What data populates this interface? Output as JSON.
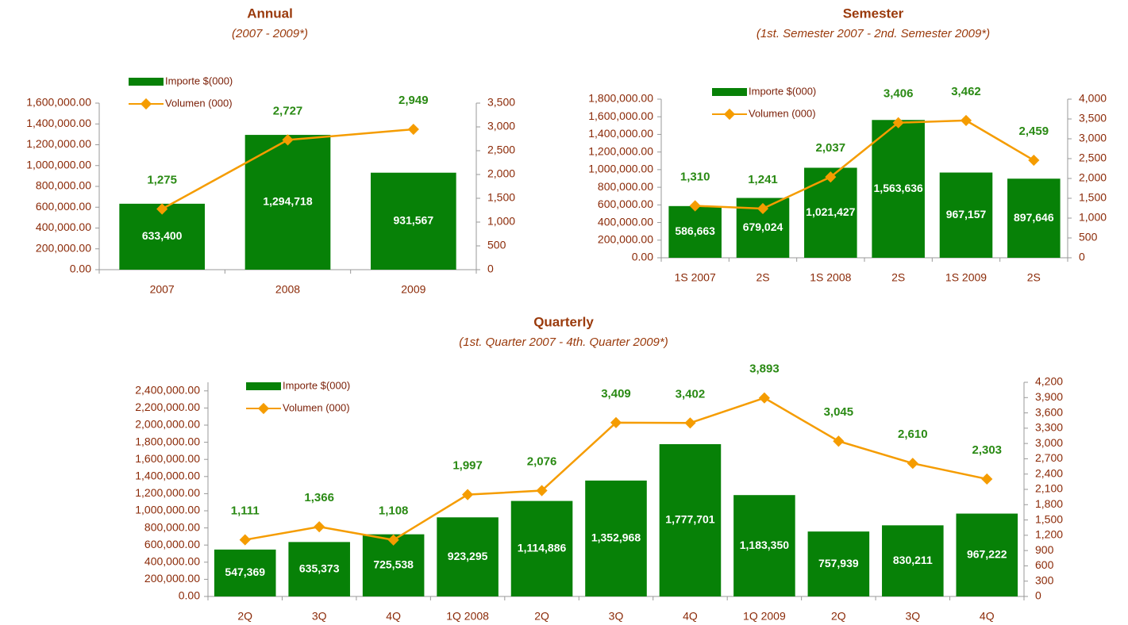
{
  "chart_data": [
    {
      "type": "bar-line",
      "title": "Annual",
      "subtitle": "(2007 - 2009*)",
      "categories": [
        "2007",
        "2008",
        "2009"
      ],
      "series": [
        {
          "name": "Importe $(000)",
          "type": "bar",
          "axis": "y",
          "color": "#078107",
          "values": [
            633400,
            1294718,
            931567
          ],
          "value_labels": [
            "633,400",
            "1,294,718",
            "931,567"
          ]
        },
        {
          "name": "Volumen (000)",
          "type": "line",
          "axis": "y2",
          "color": "#f59c00",
          "values": [
            1275,
            2727,
            2949
          ],
          "value_labels": [
            "1,275",
            "2,727",
            "2,949"
          ]
        }
      ],
      "ylim": [
        0,
        1600000
      ],
      "yticks": [
        {
          "value": 0,
          "label": "0.00"
        },
        {
          "value": 200000,
          "label": "200,000.00"
        },
        {
          "value": 400000,
          "label": "400,000.00"
        },
        {
          "value": 600000,
          "label": "600,000.00"
        },
        {
          "value": 800000,
          "label": "800,000.00"
        },
        {
          "value": 1000000,
          "label": "1,000,000.00"
        },
        {
          "value": 1200000,
          "label": "1,200,000.00"
        },
        {
          "value": 1400000,
          "label": "1,400,000.00"
        },
        {
          "value": 1600000,
          "label": "1,600,000.00"
        }
      ],
      "y2lim": [
        0,
        3500
      ],
      "y2ticks": [
        0,
        500,
        {
          "value": 1000,
          "label": "1,000"
        },
        {
          "value": 1500,
          "label": "1,500"
        },
        {
          "value": 2000,
          "label": "2,000"
        },
        {
          "value": 2500,
          "label": "2,500"
        },
        {
          "value": 3000,
          "label": "3,000"
        },
        {
          "value": 3500,
          "label": "3,500"
        }
      ],
      "legend": "upper left",
      "grid": false
    },
    {
      "type": "bar-line",
      "title": "Semester",
      "subtitle": "(1st. Semester 2007 - 2nd. Semester 2009*)",
      "categories": [
        "1S 2007",
        "2S",
        "1S 2008",
        "2S",
        "1S 2009",
        "2S"
      ],
      "series": [
        {
          "name": "Importe $(000)",
          "type": "bar",
          "axis": "y",
          "color": "#078107",
          "values": [
            586663,
            679024,
            1021427,
            1563636,
            967157,
            897646
          ],
          "value_labels": [
            "586,663",
            "679,024",
            "1,021,427",
            "1,563,636",
            "967,157",
            "897,646"
          ]
        },
        {
          "name": "Volumen (000)",
          "type": "line",
          "axis": "y2",
          "color": "#f59c00",
          "values": [
            1310,
            1241,
            2037,
            3406,
            3462,
            2459
          ],
          "value_labels": [
            "1,310",
            "1,241",
            "2,037",
            "3,406",
            "3,462",
            "2,459"
          ]
        }
      ],
      "ylim": [
        0,
        1800000
      ],
      "yticks": [
        {
          "value": 0,
          "label": "0.00"
        },
        {
          "value": 200000,
          "label": "200,000.00"
        },
        {
          "value": 400000,
          "label": "400,000.00"
        },
        {
          "value": 600000,
          "label": "600,000.00"
        },
        {
          "value": 800000,
          "label": "800,000.00"
        },
        {
          "value": 1000000,
          "label": "1,000,000.00"
        },
        {
          "value": 1200000,
          "label": "1,200,000.00"
        },
        {
          "value": 1400000,
          "label": "1,400,000.00"
        },
        {
          "value": 1600000,
          "label": "1,600,000.00"
        },
        {
          "value": 1800000,
          "label": "1,800,000.00"
        }
      ],
      "y2lim": [
        0,
        4000
      ],
      "y2ticks": [
        0,
        500,
        {
          "value": 1000,
          "label": "1,000"
        },
        {
          "value": 1500,
          "label": "1,500"
        },
        {
          "value": 2000,
          "label": "2,000"
        },
        {
          "value": 2500,
          "label": "2,500"
        },
        {
          "value": 3000,
          "label": "3,000"
        },
        {
          "value": 3500,
          "label": "3,500"
        },
        {
          "value": 4000,
          "label": "4,000"
        }
      ],
      "legend": "upper left",
      "grid": false
    },
    {
      "type": "bar-line",
      "title": "Quarterly",
      "subtitle": "(1st. Quarter 2007 - 4th. Quarter 2009*)",
      "categories": [
        "2Q",
        "3Q",
        "4Q",
        "1Q 2008",
        "2Q",
        "3Q",
        "4Q",
        "1Q 2009",
        "2Q",
        "3Q",
        "4Q"
      ],
      "series": [
        {
          "name": "Importe $(000)",
          "type": "bar",
          "axis": "y",
          "color": "#078107",
          "values": [
            547369,
            635373,
            725538,
            923295,
            1114886,
            1352968,
            1777701,
            1183350,
            757939,
            830211,
            967222
          ],
          "value_labels": [
            "547,369",
            "635,373",
            "725,538",
            "923,295",
            "1,114,886",
            "1,352,968",
            "1,777,701",
            "1,183,350",
            "757,939",
            "830,211",
            "967,222"
          ]
        },
        {
          "name": "Volumen (000)",
          "type": "line",
          "axis": "y2",
          "color": "#f59c00",
          "values": [
            1111,
            1366,
            1108,
            1997,
            2076,
            3409,
            3402,
            3893,
            3045,
            2610,
            2303
          ],
          "value_labels": [
            "1,111",
            "1,366",
            "1,108",
            "1,997",
            "2,076",
            "3,409",
            "3,402",
            "3,893",
            "3,045",
            "2,610",
            "2,303"
          ]
        }
      ],
      "ylim": [
        0,
        2500000
      ],
      "yticks": [
        {
          "value": 0,
          "label": "0.00"
        },
        {
          "value": 200000,
          "label": "200,000.00"
        },
        {
          "value": 400000,
          "label": "400,000.00"
        },
        {
          "value": 600000,
          "label": "600,000.00"
        },
        {
          "value": 800000,
          "label": "800,000.00"
        },
        {
          "value": 1000000,
          "label": "1,000,000.00"
        },
        {
          "value": 1200000,
          "label": "1,200,000.00"
        },
        {
          "value": 1400000,
          "label": "1,400,000.00"
        },
        {
          "value": 1600000,
          "label": "1,600,000.00"
        },
        {
          "value": 1800000,
          "label": "1,800,000.00"
        },
        {
          "value": 2000000,
          "label": "2,000,000.00"
        },
        {
          "value": 2200000,
          "label": "2,200,000.00"
        },
        {
          "value": 2400000,
          "label": "2,400,000.00"
        }
      ],
      "y2lim": [
        0,
        4200
      ],
      "y2ticks": [
        0,
        300,
        600,
        900,
        {
          "value": 1200,
          "label": "1,200"
        },
        {
          "value": 1500,
          "label": "1,500"
        },
        {
          "value": 1800,
          "label": "1,800"
        },
        {
          "value": 2100,
          "label": "2,100"
        },
        {
          "value": 2400,
          "label": "2,400"
        },
        {
          "value": 2700,
          "label": "2,700"
        },
        {
          "value": 3000,
          "label": "3,000"
        },
        {
          "value": 3300,
          "label": "3,300"
        },
        {
          "value": 3600,
          "label": "3,600"
        },
        {
          "value": 3900,
          "label": "3,900"
        },
        {
          "value": 4200,
          "label": "4,200"
        }
      ],
      "legend": "upper left",
      "grid": false
    }
  ]
}
